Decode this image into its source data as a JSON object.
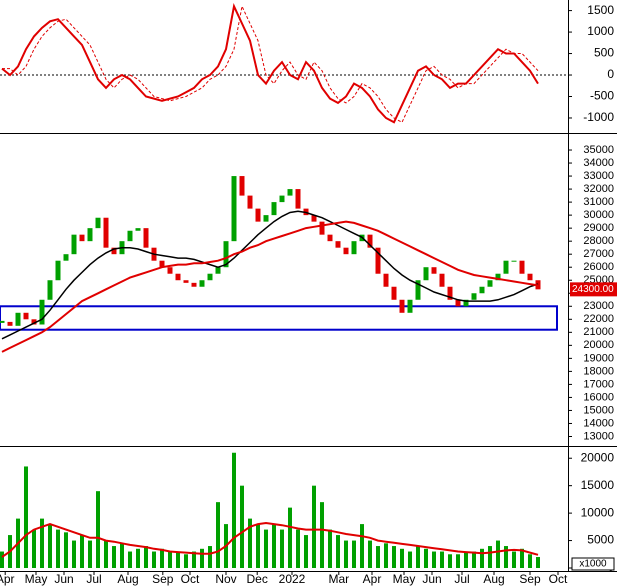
{
  "chart_data": [
    {
      "type": "line",
      "xlim": [
        0,
        70
      ],
      "ylim": [
        -1280,
        1700
      ],
      "yticks": [
        1500,
        1000,
        500,
        0,
        -500,
        -1000
      ],
      "hline": 0,
      "series": [
        {
          "color": "#e00000",
          "values": [
            150,
            0,
            200,
            600,
            900,
            1100,
            1250,
            1300,
            1100,
            900,
            700,
            300,
            -100,
            -300,
            -100,
            0,
            -100,
            -300,
            -500,
            -550,
            -600,
            -550,
            -500,
            -400,
            -300,
            -100,
            0,
            200,
            600,
            1600,
            1200,
            800,
            0,
            -200,
            100,
            300,
            0,
            -100,
            300,
            100,
            -300,
            -550,
            -650,
            -500,
            -200,
            -300,
            -500,
            -800,
            -1000,
            -1100,
            -700,
            -300,
            100,
            200,
            0,
            -100,
            -300,
            -200,
            -200,
            0,
            200,
            400,
            600,
            500,
            500,
            300,
            100,
            -200
          ]
        },
        {
          "color": "#e00000",
          "dashed": true,
          "values": [
            150,
            150,
            0,
            200,
            600,
            900,
            1100,
            1250,
            1300,
            1100,
            900,
            700,
            300,
            -100,
            -300,
            -100,
            0,
            -100,
            -300,
            -500,
            -550,
            -600,
            -550,
            -500,
            -400,
            -300,
            -100,
            0,
            200,
            600,
            1600,
            1200,
            800,
            0,
            -200,
            100,
            300,
            0,
            -100,
            300,
            100,
            -300,
            -550,
            -650,
            -500,
            -200,
            -300,
            -500,
            -800,
            -1000,
            -1100,
            -700,
            -300,
            100,
            200,
            0,
            -100,
            -300,
            -200,
            -200,
            0,
            200,
            400,
            600,
            500,
            500,
            300,
            100
          ]
        }
      ]
    },
    {
      "type": "candlestick",
      "xlim": [
        0,
        70
      ],
      "ylim": [
        12500,
        36000
      ],
      "yticks": [
        35000,
        34000,
        33000,
        32000,
        31000,
        30000,
        29000,
        28000,
        27000,
        26000,
        25000,
        24000,
        23000,
        22000,
        21000,
        20000,
        19000,
        18000,
        17000,
        16000,
        15000,
        14000,
        13000
      ],
      "up_color": "#00a000",
      "down_color": "#e00000",
      "close": [
        21800,
        21500,
        22500,
        22000,
        21600,
        23500,
        25000,
        26500,
        27000,
        28500,
        28000,
        29000,
        29800,
        27500,
        27000,
        28000,
        28800,
        29000,
        27500,
        26500,
        26000,
        25500,
        25000,
        24800,
        24500,
        25000,
        25500,
        26000,
        28000,
        33000,
        31500,
        30500,
        29500,
        30000,
        31000,
        31500,
        32000,
        30500,
        30000,
        29500,
        28500,
        28000,
        27500,
        27000,
        28000,
        28500,
        27500,
        25500,
        24500,
        23500,
        22500,
        23500,
        25000,
        26000,
        25500,
        24500,
        23500,
        23000,
        23500,
        24000,
        24500,
        25000,
        25500,
        26500,
        26500,
        25500,
        25000,
        24300
      ],
      "series": [
        {
          "color": "#000000",
          "values": [
            20500,
            20800,
            21100,
            21400,
            21700,
            22000,
            22700,
            23500,
            24300,
            25000,
            25600,
            26200,
            26700,
            27100,
            27400,
            27500,
            27500,
            27400,
            27200,
            27000,
            26900,
            26800,
            26700,
            26700,
            26600,
            26400,
            26200,
            26000,
            26200,
            26700,
            27300,
            27900,
            28500,
            29000,
            29500,
            29900,
            30200,
            30300,
            30200,
            30000,
            29800,
            29500,
            29200,
            28900,
            28600,
            28300,
            27700,
            27100,
            26500,
            25900,
            25400,
            25000,
            24700,
            24400,
            24100,
            23900,
            23700,
            23500,
            23400,
            23400,
            23400,
            23400,
            23500,
            23700,
            23900,
            24200,
            24500,
            24700
          ]
        },
        {
          "color": "#e00000",
          "values": [
            19500,
            19800,
            20100,
            20400,
            20700,
            21000,
            21400,
            21900,
            22400,
            22900,
            23400,
            23700,
            24000,
            24300,
            24600,
            24900,
            25200,
            25400,
            25600,
            25800,
            26000,
            26100,
            26200,
            26200,
            26300,
            26300,
            26400,
            26500,
            26700,
            27000,
            27200,
            27500,
            27700,
            28000,
            28200,
            28400,
            28600,
            28800,
            29000,
            29100,
            29200,
            29300,
            29400,
            29500,
            29400,
            29200,
            29000,
            28800,
            28500,
            28200,
            27900,
            27600,
            27300,
            27000,
            26700,
            26400,
            26100,
            25800,
            25600,
            25400,
            25300,
            25200,
            25100,
            25000,
            24900,
            24800,
            24700,
            24600
          ]
        }
      ],
      "zone": [
        21200,
        23000
      ],
      "zone_color": "#0000cc",
      "last_price": {
        "value": 24300,
        "label": "24300.00"
      }
    },
    {
      "type": "bar",
      "xlim": [
        0,
        70
      ],
      "ylim": [
        0,
        21500
      ],
      "yticks": [
        20000,
        15000,
        10000,
        5000,
        0
      ],
      "color": "#00a000",
      "unit_label": "x1000",
      "values": [
        3000,
        6000,
        9000,
        18500,
        7000,
        9000,
        8000,
        7000,
        6500,
        5000,
        6000,
        5000,
        14000,
        5000,
        4000,
        4500,
        3000,
        3500,
        4000,
        3000,
        3500,
        3000,
        3000,
        2500,
        3000,
        3500,
        4000,
        12000,
        8000,
        21000,
        15000,
        9000,
        8000,
        7000,
        8000,
        7000,
        11000,
        7000,
        6000,
        15000,
        12000,
        7000,
        6000,
        5000,
        5000,
        8000,
        5000,
        4000,
        4500,
        4000,
        3500,
        3000,
        4000,
        3500,
        3000,
        3000,
        2500,
        2500,
        3000,
        3000,
        3500,
        4000,
        5000,
        4000,
        3000,
        3500,
        2500,
        2000
      ],
      "series": [
        {
          "color": "#e00000",
          "values": [
            2000,
            3000,
            4500,
            6000,
            7000,
            7500,
            8000,
            7500,
            7000,
            6500,
            6000,
            5500,
            5500,
            5000,
            4800,
            4500,
            4200,
            4000,
            3800,
            3500,
            3300,
            3000,
            2900,
            2800,
            2700,
            2600,
            2600,
            3000,
            4000,
            5500,
            6500,
            7500,
            8000,
            8200,
            8000,
            7800,
            7500,
            7200,
            7000,
            7000,
            7000,
            6800,
            6500,
            6200,
            6000,
            5800,
            5500,
            5000,
            4800,
            4600,
            4400,
            4200,
            4000,
            3800,
            3600,
            3400,
            3200,
            3000,
            2900,
            2800,
            2700,
            2800,
            3000,
            3200,
            3300,
            3200,
            2800,
            2400
          ]
        }
      ],
      "xticks": [
        {
          "value": 0.4,
          "label": "Apr"
        },
        {
          "value": 4.25,
          "label": "May"
        },
        {
          "value": 7.75,
          "label": "Jun"
        },
        {
          "value": 11.5,
          "label": "Jul"
        },
        {
          "value": 15.75,
          "label": "Aug"
        },
        {
          "value": 20.1,
          "label": "Sep"
        },
        {
          "value": 23.5,
          "label": "Oct"
        },
        {
          "value": 28,
          "label": "Nov"
        },
        {
          "value": 31.9,
          "label": "Dec"
        },
        {
          "value": 36.25,
          "label": "2022"
        },
        {
          "value": 42.1,
          "label": "Mar"
        },
        {
          "value": 46.25,
          "label": "Apr"
        },
        {
          "value": 50.25,
          "label": "May"
        },
        {
          "value": 53.75,
          "label": "Jun"
        },
        {
          "value": 57.5,
          "label": "Jul"
        },
        {
          "value": 61.5,
          "label": "Aug"
        },
        {
          "value": 66,
          "label": "Sep"
        },
        {
          "value": 69.5,
          "label": "Oct"
        }
      ]
    }
  ]
}
